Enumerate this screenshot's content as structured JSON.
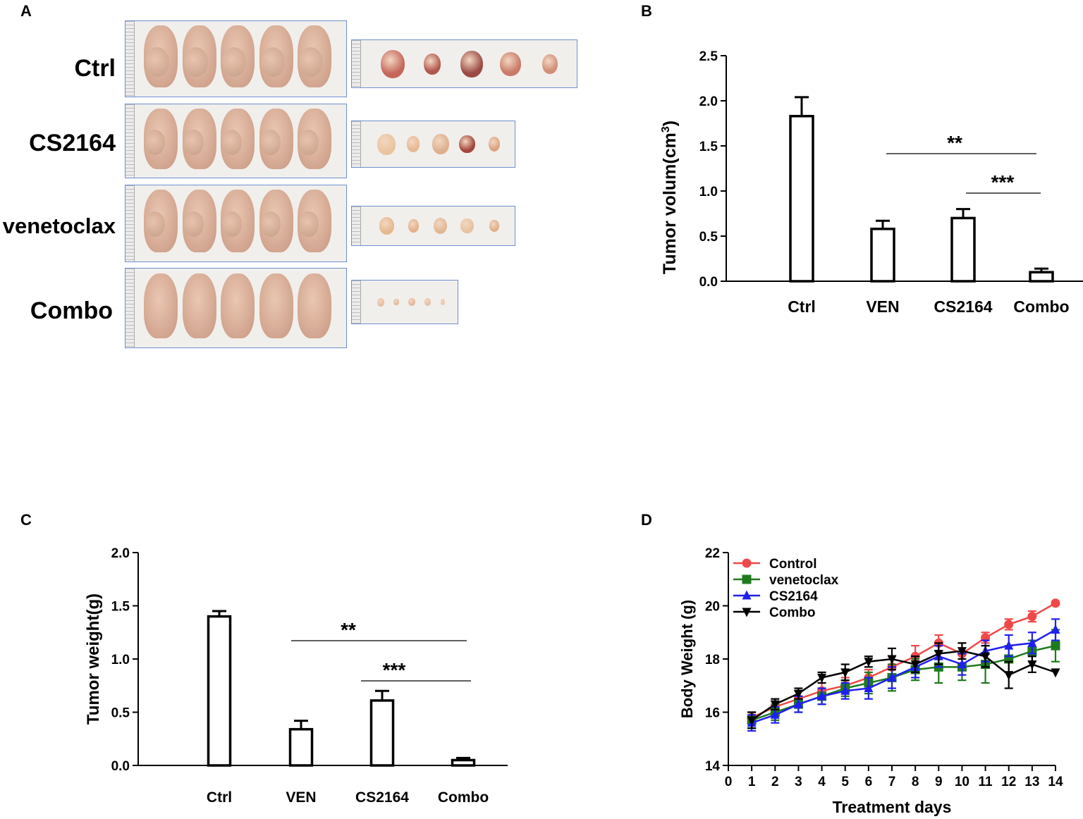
{
  "panels": {
    "A": {
      "letter": "A",
      "rows": [
        {
          "label": "Ctrl",
          "mice": 5,
          "tumors": 5
        },
        {
          "label": "CS2164",
          "mice": 5,
          "tumors": 5
        },
        {
          "label": "venetoclax",
          "mice": 5,
          "tumors": 5
        },
        {
          "label": "Combo",
          "mice": 5,
          "tumors": 5
        }
      ]
    },
    "B": {
      "letter": "B"
    },
    "C": {
      "letter": "C"
    },
    "D": {
      "letter": "D"
    }
  },
  "colors": {
    "control": "#f04848",
    "venetoclax": "#1e7a1e",
    "cs2164": "#1f1ff0",
    "combo": "#000000",
    "photo_border": "#6f8fcf"
  },
  "chart_data": [
    {
      "id": "B",
      "type": "bar",
      "title": "",
      "ylabel": "Tumor volum(cm3)",
      "ylabel_main": "Tumor volum(cm",
      "ylabel_sup": "3",
      "ylabel_end": ")",
      "categories": [
        "Ctrl",
        "VEN",
        "CS2164",
        "Combo"
      ],
      "values": [
        1.83,
        0.58,
        0.7,
        0.1
      ],
      "errors": [
        0.21,
        0.09,
        0.1,
        0.04
      ],
      "ylim": [
        0,
        2.5
      ],
      "yticks": [
        "0.0",
        "0.5",
        "1.0",
        "1.5",
        "2.0",
        "2.5"
      ],
      "annotations": [
        {
          "text": "**",
          "from": "VEN",
          "to": "Combo"
        },
        {
          "text": "***",
          "from": "CS2164",
          "to": "Combo"
        }
      ]
    },
    {
      "id": "C",
      "type": "bar",
      "title": "",
      "ylabel": "Tumor weight(g)",
      "categories": [
        "Ctrl",
        "VEN",
        "CS2164",
        "Combo"
      ],
      "values": [
        1.4,
        0.34,
        0.61,
        0.05
      ],
      "errors": [
        0.05,
        0.08,
        0.09,
        0.02
      ],
      "ylim": [
        0,
        2.0
      ],
      "yticks": [
        "0.0",
        "0.5",
        "1.0",
        "1.5",
        "2.0"
      ],
      "annotations": [
        {
          "text": "**",
          "from": "VEN",
          "to": "Combo"
        },
        {
          "text": "***",
          "from": "CS2164",
          "to": "Combo"
        }
      ]
    },
    {
      "id": "D",
      "type": "line",
      "title": "",
      "xlabel": "Treatment days",
      "ylabel": "Body Weight (g)",
      "x": [
        1,
        2,
        3,
        4,
        5,
        6,
        7,
        8,
        9,
        10,
        11,
        12,
        13,
        14
      ],
      "xlim": [
        0,
        14
      ],
      "xticks": [
        "0",
        "1",
        "2",
        "3",
        "4",
        "5",
        "6",
        "7",
        "8",
        "9",
        "10",
        "11",
        "12",
        "13",
        "14"
      ],
      "ylim": [
        14,
        22
      ],
      "yticks": [
        "14",
        "16",
        "18",
        "20",
        "22"
      ],
      "legend_position": "top-left",
      "series": [
        {
          "name": "Control",
          "color": "#f04848",
          "marker": "circle",
          "values": [
            15.8,
            16.2,
            16.5,
            16.8,
            17.0,
            17.3,
            17.7,
            18.1,
            18.6,
            18.2,
            18.8,
            19.3,
            19.6,
            20.1
          ],
          "errors": [
            0.2,
            0.2,
            0.3,
            0.3,
            0.3,
            0.3,
            0.4,
            0.4,
            0.3,
            0.4,
            0.2,
            0.2,
            0.2,
            0.0
          ]
        },
        {
          "name": "venetoclax",
          "color": "#1e7a1e",
          "marker": "square",
          "values": [
            15.7,
            16.0,
            16.3,
            16.6,
            16.9,
            17.1,
            17.3,
            17.6,
            17.7,
            17.7,
            17.8,
            18.0,
            18.3,
            18.5
          ],
          "errors": [
            0.3,
            0.3,
            0.3,
            0.3,
            0.3,
            0.4,
            0.5,
            0.4,
            0.6,
            0.5,
            0.7,
            0.5,
            0.4,
            0.6
          ]
        },
        {
          "name": "CS2164",
          "color": "#1f1ff0",
          "marker": "triangle-up",
          "values": [
            15.6,
            15.9,
            16.3,
            16.6,
            16.8,
            16.9,
            17.3,
            17.7,
            18.1,
            17.8,
            18.3,
            18.5,
            18.6,
            19.1
          ],
          "errors": [
            0.3,
            0.3,
            0.3,
            0.3,
            0.3,
            0.4,
            0.4,
            0.4,
            0.4,
            0.4,
            0.4,
            0.4,
            0.4,
            0.4
          ]
        },
        {
          "name": "Combo",
          "color": "#000000",
          "marker": "triangle-down",
          "values": [
            15.7,
            16.3,
            16.7,
            17.3,
            17.5,
            17.9,
            18.0,
            17.8,
            18.2,
            18.3,
            18.1,
            17.4,
            17.8,
            17.5
          ],
          "errors": [
            0.3,
            0.2,
            0.2,
            0.2,
            0.3,
            0.2,
            0.4,
            0.3,
            0.4,
            0.3,
            0.4,
            0.5,
            0.3,
            0.0
          ]
        }
      ]
    }
  ]
}
